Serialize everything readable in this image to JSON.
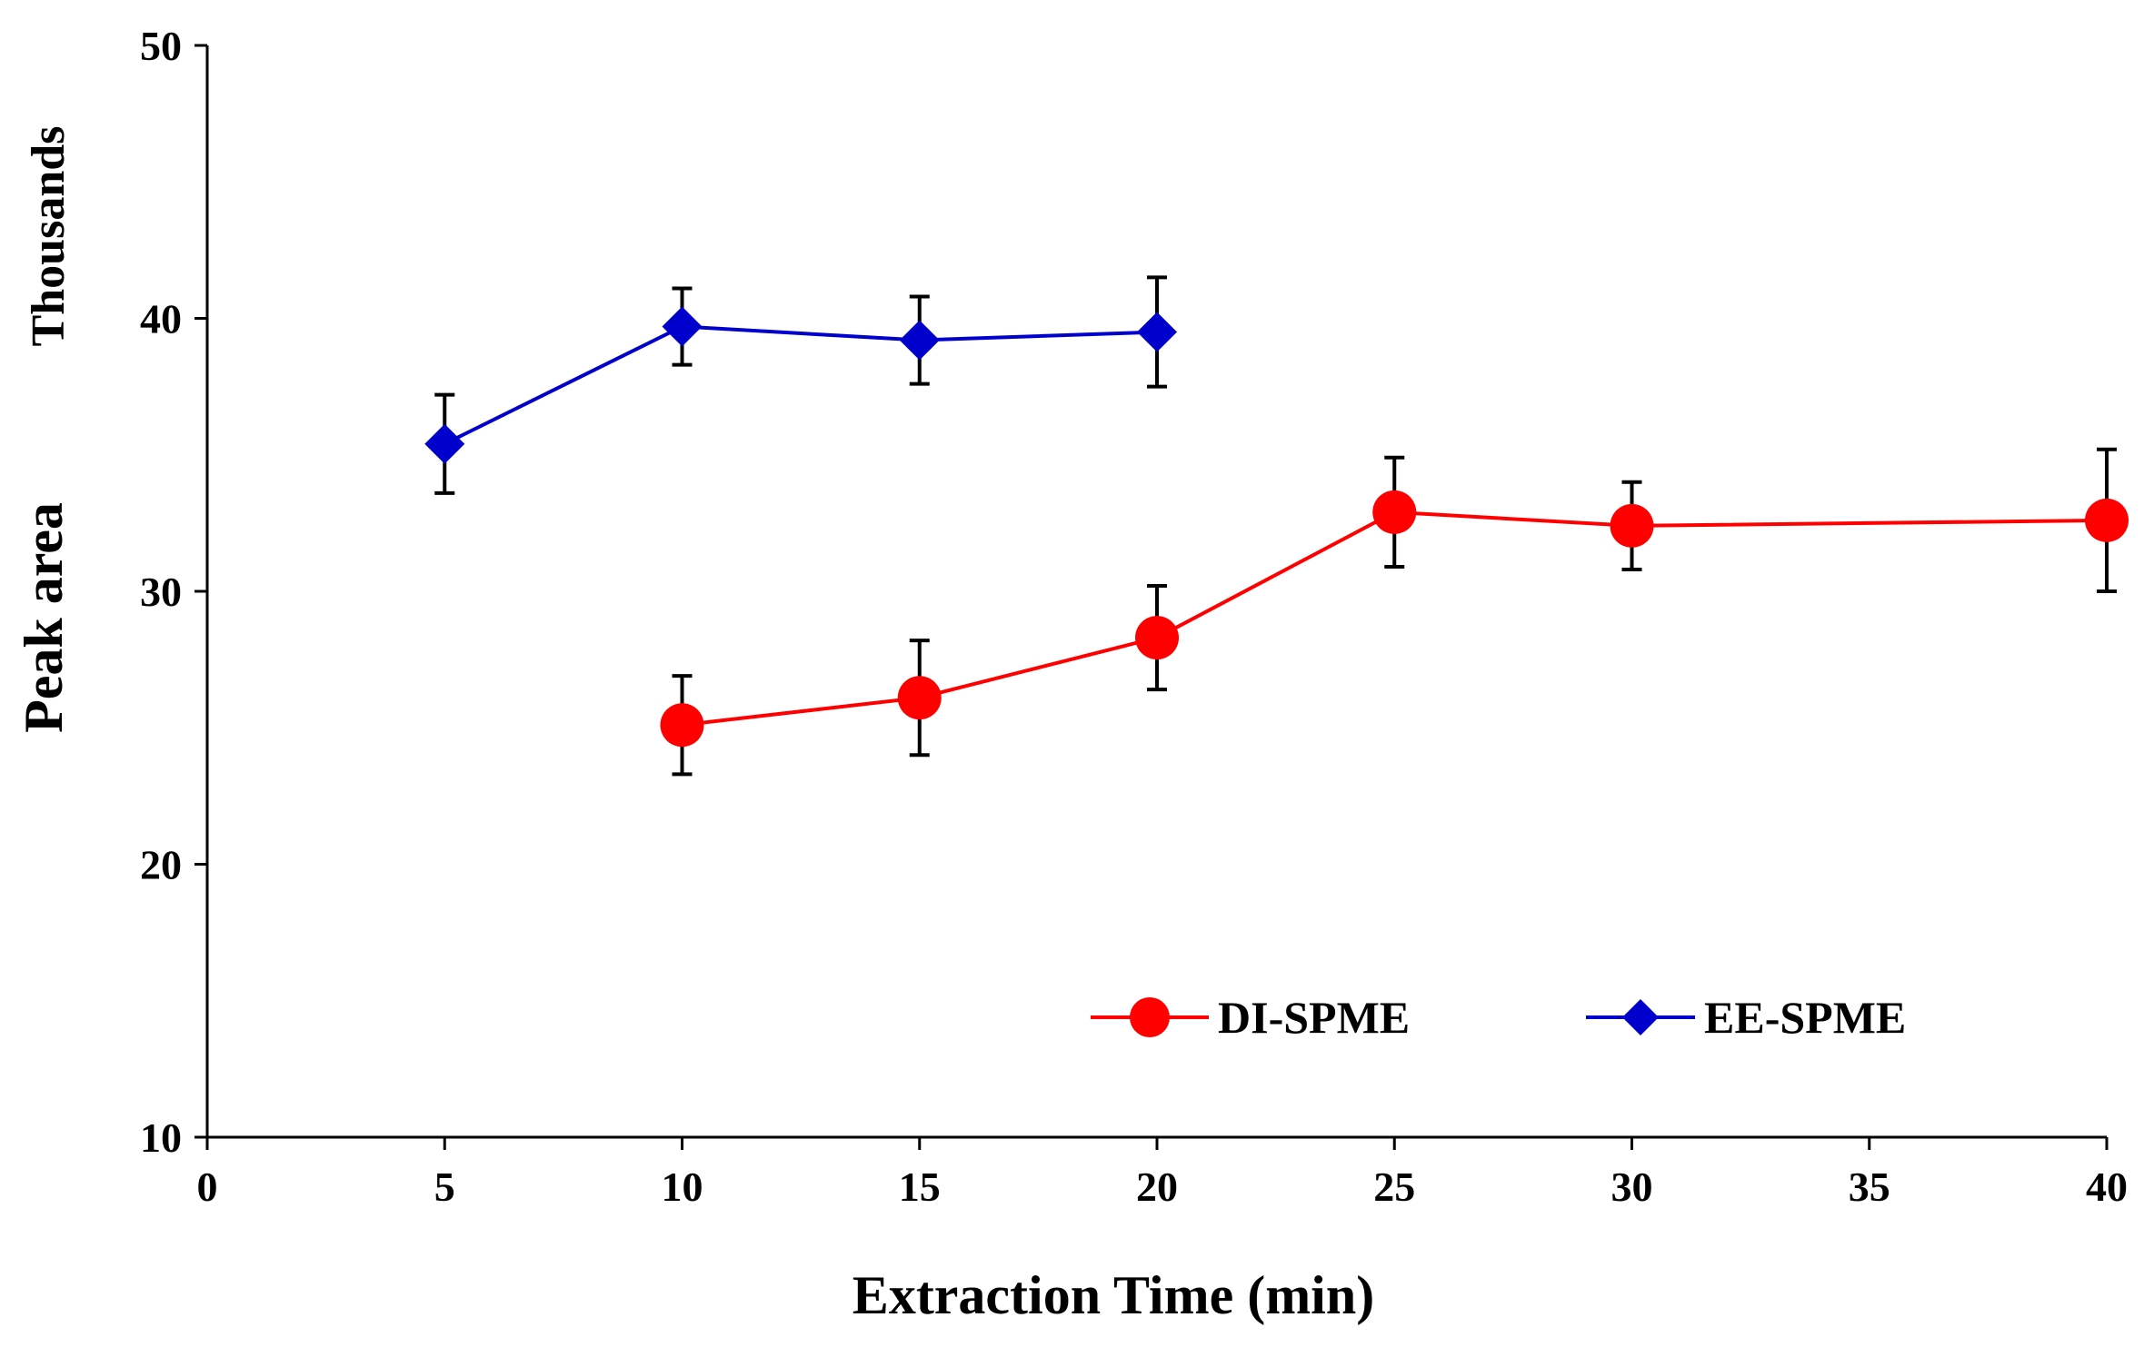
{
  "chart_data": {
    "type": "line",
    "title": "",
    "xlabel": "Extraction Time (min)",
    "ylabel": "Peak area",
    "y_unit_label": "Thousands",
    "xlim": [
      0,
      40
    ],
    "ylim": [
      10,
      50
    ],
    "x_ticks": [
      0,
      5,
      10,
      15,
      20,
      25,
      30,
      35,
      40
    ],
    "y_ticks": [
      10,
      20,
      30,
      40,
      50
    ],
    "grid": false,
    "legend_position": "lower-right",
    "series": [
      {
        "name": "DI-SPME",
        "color": "#ff0000",
        "marker": "circle",
        "x": [
          10,
          15,
          20,
          25,
          30,
          40
        ],
        "y": [
          25.1,
          26.1,
          28.3,
          32.9,
          32.4,
          32.6
        ],
        "error": [
          1.8,
          2.1,
          1.9,
          2.0,
          1.6,
          2.6
        ]
      },
      {
        "name": "EE-SPME",
        "color": "#0000cc",
        "marker": "diamond",
        "x": [
          5,
          10,
          15,
          20
        ],
        "y": [
          35.4,
          39.7,
          39.2,
          39.5
        ],
        "error": [
          1.8,
          1.4,
          1.6,
          2.0
        ]
      }
    ]
  }
}
